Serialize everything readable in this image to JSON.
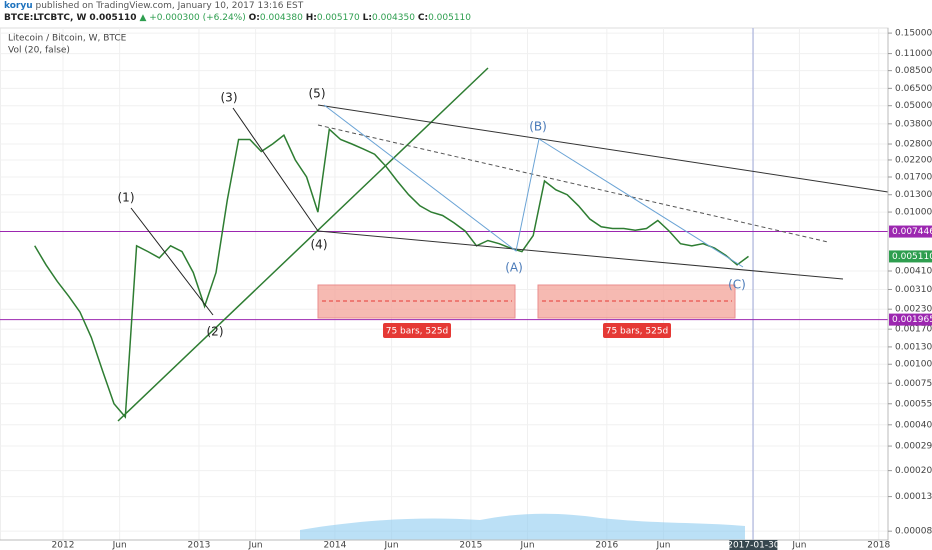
{
  "header": {
    "author": "koryu",
    "published": "published on TradingView.com, January 10, 2017 13:16 EST",
    "symbol": "BTCE:LTCBTC, W",
    "last": "0.005110",
    "change": "▲ +0.000300 (+6.24%)",
    "quote": [
      {
        "key": "O:",
        "value": "0.004380"
      },
      {
        "key": "H:",
        "value": "0.005170"
      },
      {
        "key": "L:",
        "value": "0.004350"
      },
      {
        "key": "C:",
        "value": "0.005110"
      }
    ]
  },
  "chart_data": {
    "type": "line",
    "title": "Litecoin / Bitcoin, W, BTCE",
    "subtitle": "Vol (20, false)",
    "log_scale": true,
    "grid": true,
    "color": "#2e7d32",
    "x": [
      "2011-10",
      "2011-11",
      "2011-12",
      "2012-01",
      "2012-02",
      "2012-03",
      "2012-04",
      "2012-05",
      "2012-06",
      "2012-07",
      "2012-08",
      "2012-09",
      "2012-10",
      "2012-11",
      "2012-12",
      "2013-01",
      "2013-02",
      "2013-03",
      "2013-04",
      "2013-05",
      "2013-06",
      "2013-07",
      "2013-08",
      "2013-09",
      "2013-10",
      "2013-11",
      "2013-12",
      "2014-01",
      "2014-02",
      "2014-03",
      "2014-04",
      "2014-05",
      "2014-06",
      "2014-07",
      "2014-08",
      "2014-09",
      "2014-10",
      "2014-11",
      "2014-12",
      "2015-01",
      "2015-02",
      "2015-03",
      "2015-04",
      "2015-05",
      "2015-06",
      "2015-07",
      "2015-08",
      "2015-09",
      "2015-10",
      "2015-11",
      "2015-12",
      "2016-01",
      "2016-02",
      "2016-03",
      "2016-04",
      "2016-05",
      "2016-06",
      "2016-07",
      "2016-08",
      "2016-09",
      "2016-10",
      "2016-11",
      "2016-12",
      "2017-01"
    ],
    "values": [
      0.006,
      0.0045,
      0.0035,
      0.0028,
      0.0022,
      0.0015,
      0.0009,
      0.00055,
      0.00045,
      0.006,
      0.0055,
      0.005,
      0.006,
      0.0055,
      0.004,
      0.0024,
      0.004,
      0.012,
      0.03,
      0.03,
      0.025,
      0.028,
      0.032,
      0.022,
      0.017,
      0.01,
      0.035,
      0.03,
      0.028,
      0.026,
      0.024,
      0.02,
      0.016,
      0.013,
      0.011,
      0.01,
      0.0095,
      0.0085,
      0.0075,
      0.006,
      0.0065,
      0.0062,
      0.0058,
      0.0055,
      0.007,
      0.016,
      0.014,
      0.013,
      0.011,
      0.009,
      0.008,
      0.0078,
      0.0078,
      0.0076,
      0.0078,
      0.0088,
      0.0075,
      0.0062,
      0.006,
      0.0062,
      0.0058,
      0.0052,
      0.0045,
      0.00511
    ],
    "ylim": [
      7e-05,
      0.162
    ],
    "yticks": [
      {
        "value": 0.15,
        "label": "0.150000"
      },
      {
        "value": 0.11,
        "label": "0.110000"
      },
      {
        "value": 0.085,
        "label": "0.085000"
      },
      {
        "value": 0.065,
        "label": "0.065000"
      },
      {
        "value": 0.05,
        "label": "0.050000"
      },
      {
        "value": 0.038,
        "label": "0.038000"
      },
      {
        "value": 0.028,
        "label": "0.028000"
      },
      {
        "value": 0.022,
        "label": "0.022000"
      },
      {
        "value": 0.017,
        "label": "0.017000"
      },
      {
        "value": 0.013,
        "label": "0.013000"
      },
      {
        "value": 0.01,
        "label": "0.010000"
      },
      {
        "value": 0.0041,
        "label": "0.004100"
      },
      {
        "value": 0.0031,
        "label": "0.003100"
      },
      {
        "value": 0.0023,
        "label": "0.002300"
      },
      {
        "value": 0.0017,
        "label": "0.001700"
      },
      {
        "value": 0.0013,
        "label": "0.001300"
      },
      {
        "value": 0.001,
        "label": "0.001000"
      },
      {
        "value": 0.00075,
        "label": "0.000750"
      },
      {
        "value": 0.00055,
        "label": "0.000550"
      },
      {
        "value": 0.0004,
        "label": "0.000400"
      },
      {
        "value": 0.00029,
        "label": "0.000290"
      },
      {
        "value": 0.0002,
        "label": "0.000200"
      },
      {
        "value": 0.000135,
        "label": "0.000135"
      },
      {
        "value": 8e-05,
        "label": "0.000080"
      }
    ],
    "xticks": [
      {
        "value": "2012-01",
        "label": "2012"
      },
      {
        "value": "2012-06",
        "label": "Jun"
      },
      {
        "value": "2013-01",
        "label": "2013"
      },
      {
        "value": "2013-06",
        "label": "Jun"
      },
      {
        "value": "2014-01",
        "label": "2014"
      },
      {
        "value": "2014-06",
        "label": "Jun"
      },
      {
        "value": "2015-01",
        "label": "2015"
      },
      {
        "value": "2015-06",
        "label": "Jun"
      },
      {
        "value": "2016-01",
        "label": "2016"
      },
      {
        "value": "2016-06",
        "label": "Jun"
      },
      "2017-01-30",
      {
        "value": "2017-06",
        "label": "Jun"
      },
      {
        "value": "2018-01",
        "label": "2018"
      }
    ],
    "price_labels": [
      {
        "value": 0.007446,
        "label": "0.007446",
        "color": "#9c27b0",
        "line": true
      },
      {
        "value": 0.00511,
        "label": "0.005110",
        "color": "#2e9e4f",
        "line": false
      },
      {
        "value": 0.001965,
        "label": "0.001965",
        "color": "#9c27b0",
        "line": true
      }
    ],
    "annotations": [
      "(1)",
      "(2)",
      "(3)",
      "(4)",
      "(5)",
      "(A)",
      "(B)",
      "(C)"
    ],
    "date_ranges": [
      "75 bars, 525d",
      "75 bars, 525d"
    ]
  }
}
